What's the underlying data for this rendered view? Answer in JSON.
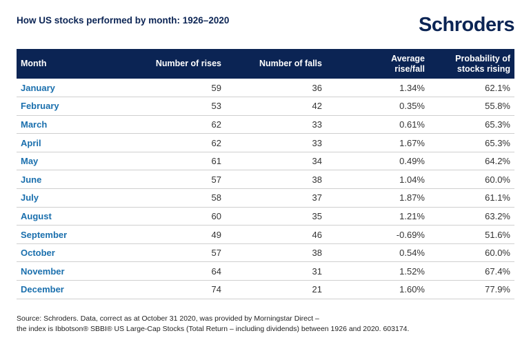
{
  "title": "How US stocks performed by month: 1926–2020",
  "logo": "Schroders",
  "chart_data": {
    "type": "table",
    "title": "How US stocks performed by month: 1926–2020",
    "columns": [
      "Month",
      "Number of rises",
      "Number of falls",
      "Average rise/fall",
      "Probability of stocks rising"
    ],
    "header_lines": {
      "avg": [
        "Average",
        "rise/fall"
      ],
      "prob": [
        "Probability of",
        "stocks rising"
      ]
    },
    "rows": [
      [
        "January",
        "59",
        "36",
        "1.34%",
        "62.1%"
      ],
      [
        "February",
        "53",
        "42",
        "0.35%",
        "55.8%"
      ],
      [
        "March",
        "62",
        "33",
        "0.61%",
        "65.3%"
      ],
      [
        "April",
        "62",
        "33",
        "1.67%",
        "65.3%"
      ],
      [
        "May",
        "61",
        "34",
        "0.49%",
        "64.2%"
      ],
      [
        "June",
        "57",
        "38",
        "1.04%",
        "60.0%"
      ],
      [
        "July",
        "58",
        "37",
        "1.87%",
        "61.1%"
      ],
      [
        "August",
        "60",
        "35",
        "1.21%",
        "63.2%"
      ],
      [
        "September",
        "49",
        "46",
        "-0.69%",
        "51.6%"
      ],
      [
        "October",
        "57",
        "38",
        "0.54%",
        "60.0%"
      ],
      [
        "November",
        "64",
        "31",
        "1.52%",
        "67.4%"
      ],
      [
        "December",
        "74",
        "21",
        "1.60%",
        "77.9%"
      ]
    ]
  },
  "source": {
    "line1": "Source: Schroders. Data, correct as at October 31 2020, was provided by Morningstar Direct –",
    "line2": "the index is Ibbotson® SBBI® US Large-Cap Stocks (Total Return – including dividends) between 1926 and 2020. 603174."
  },
  "colors": {
    "header_bg": "#0b2454",
    "month_text": "#1a6fad",
    "title_text": "#0b2454"
  }
}
